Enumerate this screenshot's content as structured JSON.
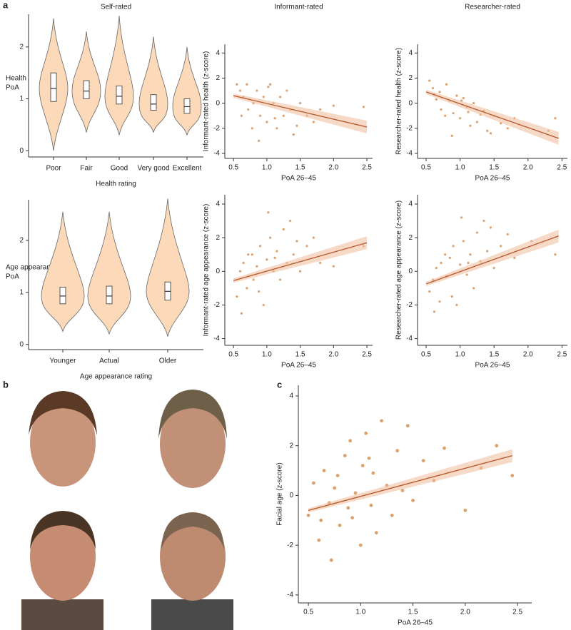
{
  "panel_labels": [
    "a",
    "b",
    "c"
  ],
  "chart_data": [
    {
      "type": "violin",
      "title": "Self-rated",
      "ylabel": [
        "Health",
        "PoA"
      ],
      "xlabel": "Health rating",
      "categories": [
        "Poor",
        "Fair",
        "Good",
        "Very good",
        "Excellent"
      ],
      "min": [
        0.0,
        0.35,
        0.3,
        0.35,
        0.3
      ],
      "q1": [
        0.95,
        1.0,
        0.9,
        0.78,
        0.72
      ],
      "median": [
        1.2,
        1.15,
        1.05,
        0.9,
        0.85
      ],
      "q3": [
        1.5,
        1.35,
        1.25,
        1.08,
        1.0
      ],
      "max": [
        2.55,
        2.3,
        2.6,
        2.2,
        2.0
      ],
      "color": "#fcd9b8",
      "ylim": [
        -0.12,
        2.63
      ],
      "yticks": [
        0,
        1,
        2
      ]
    },
    {
      "type": "violin",
      "ylabel": [
        "Age appearance",
        "PoA"
      ],
      "xlabel": "Age appearance rating",
      "categories": [
        "Younger",
        "Actual",
        "Older"
      ],
      "min": [
        0.25,
        0.2,
        0.15
      ],
      "q1": [
        0.78,
        0.78,
        0.85
      ],
      "median": [
        0.93,
        0.93,
        1.02
      ],
      "q3": [
        1.1,
        1.12,
        1.2
      ],
      "max": [
        2.55,
        2.55,
        2.8
      ],
      "color": "#fcd9b8",
      "ylim": [
        -0.1,
        2.78
      ],
      "yticks": [
        0,
        1,
        2
      ]
    },
    {
      "type": "scatter",
      "title": "Informant-rated",
      "ylabel": "Informant-rated health (z-score)",
      "xlabel": "PoA 26–45",
      "x": [
        0.55,
        0.6,
        0.65,
        0.7,
        0.72,
        0.8,
        0.85,
        0.9,
        0.95,
        1.0,
        1.05,
        1.1,
        1.15,
        1.2,
        1.25,
        1.3,
        1.35,
        1.4,
        1.5,
        1.6,
        1.7,
        1.8,
        0.62,
        0.78,
        0.88,
        1.02,
        1.12,
        1.45,
        2.0,
        2.45
      ],
      "y": [
        1.5,
        1.0,
        0.5,
        1.5,
        -0.5,
        0,
        1,
        -1,
        0.5,
        -1.5,
        1.5,
        0,
        -2,
        0.5,
        -1,
        1,
        -0.5,
        -2.5,
        0,
        -1,
        -1.5,
        -0.5,
        -1,
        -2,
        -3,
        1.3,
        -1.2,
        -1.8,
        -0.2,
        -0.3
      ],
      "fit": {
        "x": [
          0.5,
          2.5
        ],
        "y": [
          0.6,
          -1.9
        ]
      },
      "color": "#d2894a",
      "line_color": "#b5562a",
      "xlim": [
        0.37,
        2.585
      ],
      "ylim": [
        -4.4,
        4.7
      ],
      "xticks": [
        0.5,
        {
          "value": 1,
          "label": "1.0"
        },
        1.5,
        {
          "value": 2,
          "label": "2.0"
        },
        2.5
      ],
      "yticks": [
        -4,
        -2,
        0,
        2,
        4
      ]
    },
    {
      "type": "scatter",
      "title": "Researcher-rated",
      "ylabel": "Researcher-rated health (z-score)",
      "xlabel": "PoA 26–45",
      "x": [
        0.55,
        0.6,
        0.65,
        0.7,
        0.72,
        0.8,
        0.85,
        0.9,
        0.95,
        1.0,
        1.05,
        1.1,
        1.15,
        1.2,
        1.25,
        1.3,
        1.35,
        1.4,
        1.5,
        1.6,
        1.7,
        1.8,
        0.62,
        0.78,
        0.88,
        1.02,
        1.12,
        1.45,
        2.3,
        2.4
      ],
      "y": [
        1.8,
        1.2,
        0.3,
        0.9,
        -0.5,
        1.5,
        0.2,
        -0.8,
        0.6,
        -1.2,
        0.4,
        -0.3,
        -1.8,
        0,
        -1.5,
        -0.9,
        -0.6,
        -2.2,
        -1.0,
        -1.6,
        -2.0,
        -1.2,
        0.7,
        -1.0,
        -2.6,
        0.2,
        -0.7,
        -2.4,
        -2.2,
        -1.2
      ],
      "fit": {
        "x": [
          0.5,
          2.45
        ],
        "y": [
          0.9,
          -2.8
        ]
      },
      "color": "#d2894a",
      "line_color": "#b5562a",
      "xlim": [
        0.374,
        2.58
      ],
      "ylim": [
        -4.4,
        4.7
      ],
      "xticks": [
        0.5,
        {
          "value": 1,
          "label": "1.0"
        },
        1.5,
        {
          "value": 2,
          "label": "2.0"
        },
        2.5
      ],
      "yticks": [
        -4,
        -2,
        0,
        2,
        4
      ]
    },
    {
      "type": "scatter",
      "ylabel": "Informant-rated age appearance (z-score)",
      "xlabel": "PoA 26–45",
      "x": [
        0.55,
        0.6,
        0.65,
        0.7,
        0.72,
        0.8,
        0.85,
        0.9,
        0.95,
        1.0,
        1.05,
        1.1,
        1.15,
        1.2,
        1.25,
        1.3,
        1.35,
        1.4,
        1.5,
        1.6,
        1.7,
        1.8,
        0.62,
        0.78,
        0.88,
        1.02,
        1.12,
        1.45,
        2.0,
        2.45
      ],
      "y": [
        -1.5,
        0,
        0.5,
        -1,
        1,
        -0.5,
        0.3,
        1.5,
        -2,
        0.7,
        2,
        0,
        1.2,
        -0.5,
        2.5,
        0.5,
        3,
        1,
        0,
        1.5,
        2,
        0.5,
        -2.5,
        1,
        -1.2,
        3.5,
        0.8,
        1.8,
        0.3,
        1.5
      ],
      "fit": {
        "x": [
          0.5,
          2.5
        ],
        "y": [
          -0.55,
          1.7
        ]
      },
      "color": "#d2894a",
      "line_color": "#b5562a",
      "xlim": [
        0.37,
        2.585
      ],
      "ylim": [
        -4.4,
        4.55
      ],
      "xticks": [
        0.5,
        {
          "value": 1,
          "label": "1.0"
        },
        1.5,
        {
          "value": 2,
          "label": "2.0"
        },
        2.5
      ],
      "yticks": [
        -4,
        -2,
        0,
        2,
        4
      ]
    },
    {
      "type": "scatter",
      "ylabel": "Researcher-rated age appearance (z-score)",
      "xlabel": "PoA 26–45",
      "x": [
        0.55,
        0.6,
        0.65,
        0.7,
        0.72,
        0.8,
        0.85,
        0.9,
        0.95,
        1.0,
        1.05,
        1.1,
        1.15,
        1.2,
        1.25,
        1.3,
        1.35,
        1.4,
        1.5,
        1.6,
        1.7,
        1.8,
        0.62,
        0.78,
        0.88,
        1.02,
        1.12,
        1.45,
        2.05,
        2.4
      ],
      "y": [
        -1.2,
        -0.5,
        0.2,
        -1.8,
        0.5,
        -0.3,
        0.8,
        1.5,
        -2.0,
        0.4,
        1.8,
        -0.2,
        1.0,
        -1.0,
        2.3,
        0.6,
        3.0,
        1.2,
        0.2,
        1.5,
        2.2,
        0.8,
        -2.4,
        1.0,
        -1.5,
        3.2,
        0.5,
        2.6,
        1.8,
        1.0
      ],
      "fit": {
        "x": [
          0.5,
          2.45
        ],
        "y": [
          -0.75,
          2.1
        ]
      },
      "color": "#d2894a",
      "line_color": "#b5562a",
      "xlim": [
        0.374,
        2.58
      ],
      "ylim": [
        -4.4,
        4.55
      ],
      "xticks": [
        0.5,
        {
          "value": 1,
          "label": "1.0"
        },
        1.5,
        {
          "value": 2,
          "label": "2.0"
        },
        2.5
      ],
      "yticks": [
        -4,
        -2,
        0,
        2,
        4
      ]
    },
    {
      "type": "scatter",
      "ylabel": "Facial age (z-score)",
      "xlabel": "PoA 26–45",
      "x": [
        0.5,
        0.55,
        0.6,
        0.65,
        0.7,
        0.72,
        0.78,
        0.8,
        0.85,
        0.88,
        0.9,
        0.95,
        1.0,
        1.02,
        1.05,
        1.1,
        1.12,
        1.15,
        1.2,
        1.25,
        1.3,
        1.35,
        1.4,
        1.45,
        1.5,
        1.6,
        1.7,
        1.8,
        2.0,
        2.15,
        2.3,
        2.45,
        0.62,
        0.75,
        0.92,
        1.08
      ],
      "y": [
        -0.8,
        0.5,
        -1.8,
        1.0,
        -0.3,
        -2.6,
        0.8,
        -1.2,
        1.6,
        -0.5,
        2.2,
        0.1,
        -2.0,
        1.2,
        2.5,
        -0.4,
        0.9,
        -1.5,
        3.0,
        0.4,
        -0.8,
        1.8,
        0.2,
        2.8,
        -0.2,
        1.4,
        0.6,
        1.9,
        -0.6,
        1.1,
        2.0,
        0.8,
        -1.0,
        0.3,
        -0.9,
        1.5
      ],
      "fit": {
        "x": [
          0.5,
          2.45
        ],
        "y": [
          -0.6,
          1.6
        ]
      },
      "color": "#d2894a",
      "line_color": "#b5562a",
      "xlim": [
        0.404,
        2.636
      ],
      "ylim": [
        -4.32,
        4.43
      ],
      "xticks": [
        0.5,
        {
          "value": 1,
          "label": "1.0"
        },
        1.5,
        {
          "value": 2,
          "label": "2.0"
        },
        2.5
      ],
      "yticks": [
        -4,
        -2,
        0,
        2,
        4
      ]
    }
  ]
}
